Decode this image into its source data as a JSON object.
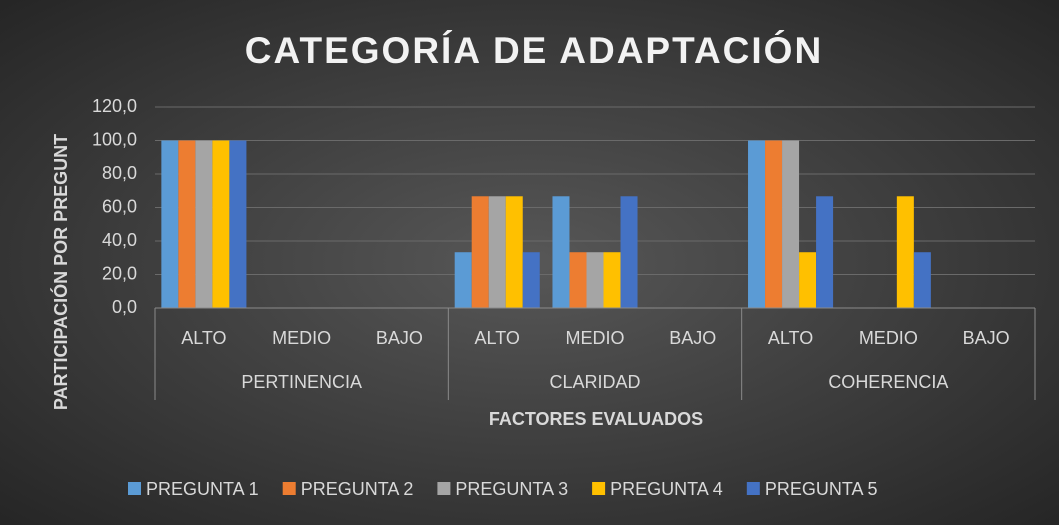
{
  "chart_data": {
    "type": "bar",
    "title": "CATEGORÍA DE ADAPTACIÓN",
    "x_label": "FACTORES EVALUADOS",
    "y_label": "PARTICIPACIÓN POR PREGUNT",
    "categories": [
      "ALTO",
      "MEDIO",
      "BAJO",
      "ALTO",
      "MEDIO",
      "BAJO",
      "ALTO",
      "MEDIO",
      "BAJO"
    ],
    "groups": [
      "PERTINENCIA",
      "CLARIDAD",
      "COHERENCIA"
    ],
    "series": [
      {
        "name": "PREGUNTA 1",
        "color": "#5b9bd5",
        "values": [
          100,
          0,
          0,
          33.3,
          66.7,
          0,
          100,
          0,
          0
        ]
      },
      {
        "name": "PREGUNTA 2",
        "color": "#ed7d31",
        "values": [
          100,
          0,
          0,
          66.7,
          33.3,
          0,
          100,
          0,
          0
        ]
      },
      {
        "name": "PREGUNTA 3",
        "color": "#a5a5a5",
        "values": [
          100,
          0,
          0,
          66.7,
          33.3,
          0,
          100,
          0,
          0
        ]
      },
      {
        "name": "PREGUNTA 4",
        "color": "#ffc000",
        "values": [
          100,
          0,
          0,
          66.7,
          33.3,
          0,
          33.3,
          66.7,
          0
        ]
      },
      {
        "name": "PREGUNTA 5",
        "color": "#4472c4",
        "values": [
          100,
          0,
          0,
          33.3,
          66.7,
          0,
          66.7,
          33.3,
          0
        ]
      }
    ],
    "ylim": [
      0,
      120
    ],
    "yticks": [
      {
        "value": 0,
        "label": "0,0"
      },
      {
        "value": 20,
        "label": "20,0"
      },
      {
        "value": 40,
        "label": "40,0"
      },
      {
        "value": 60,
        "label": "60,0"
      },
      {
        "value": 80,
        "label": "80,0"
      },
      {
        "value": 100,
        "label": "100,0"
      },
      {
        "value": 120,
        "label": "120,0"
      }
    ],
    "grid": true,
    "legend": "bottom"
  }
}
